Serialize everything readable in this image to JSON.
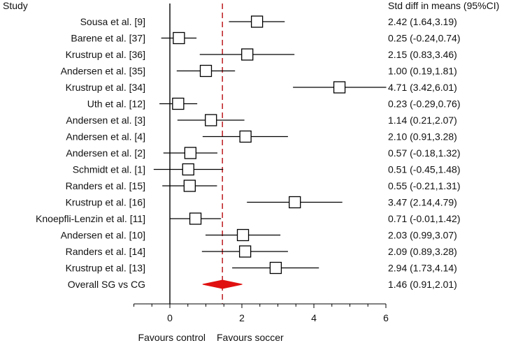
{
  "chart_data": {
    "type": "forest",
    "columns": {
      "study": "Study",
      "effect": "Std diff in means (95%CI)"
    },
    "xlim": [
      -1,
      6
    ],
    "xticks": [
      0,
      2,
      4,
      6
    ],
    "reference_line": 0,
    "pooled_line": 1.46,
    "xlabel_left": "Favours control",
    "xlabel_right": "Favours soccer",
    "studies": [
      {
        "label": "Sousa et al. [9]",
        "est": 2.42,
        "lo": 1.64,
        "hi": 3.19,
        "ci_text": "2.42 (1.64,3.19)"
      },
      {
        "label": "Barene et al. [37]",
        "est": 0.25,
        "lo": -0.24,
        "hi": 0.74,
        "ci_text": "0.25 (-0.24,0.74)"
      },
      {
        "label": "Krustrup et al. [36]",
        "est": 2.15,
        "lo": 0.83,
        "hi": 3.46,
        "ci_text": "2.15 (0.83,3.46)"
      },
      {
        "label": "Andersen et al. [35]",
        "est": 1.0,
        "lo": 0.19,
        "hi": 1.81,
        "ci_text": "1.00 (0.19,1.81)"
      },
      {
        "label": "Krustrup et al. [34]",
        "est": 4.71,
        "lo": 3.42,
        "hi": 6.01,
        "ci_text": "4.71 (3.42,6.01)"
      },
      {
        "label": "Uth et al. [12]",
        "est": 0.23,
        "lo": -0.29,
        "hi": 0.76,
        "ci_text": "0.23 (-0.29,0.76)"
      },
      {
        "label": "Andersen et al. [3]",
        "est": 1.14,
        "lo": 0.21,
        "hi": 2.07,
        "ci_text": "1.14 (0.21,2.07)"
      },
      {
        "label": "Andersen et al. [4]",
        "est": 2.1,
        "lo": 0.91,
        "hi": 3.28,
        "ci_text": "2.10 (0.91,3.28)"
      },
      {
        "label": "Andersen et al. [2]",
        "est": 0.57,
        "lo": -0.18,
        "hi": 1.32,
        "ci_text": "0.57 (-0.18,1.32)"
      },
      {
        "label": "Schmidt et al. [1]",
        "est": 0.51,
        "lo": -0.45,
        "hi": 1.48,
        "ci_text": "0.51 (-0.45,1.48)"
      },
      {
        "label": "Randers et al. [15]",
        "est": 0.55,
        "lo": -0.21,
        "hi": 1.31,
        "ci_text": "0.55 (-0.21,1.31)"
      },
      {
        "label": "Krustrup et al. [16]",
        "est": 3.47,
        "lo": 2.14,
        "hi": 4.79,
        "ci_text": "3.47 (2.14,4.79)"
      },
      {
        "label": "Knoepfli-Lenzin et al. [11]",
        "est": 0.71,
        "lo": -0.01,
        "hi": 1.42,
        "ci_text": "0.71 (-0.01,1.42)"
      },
      {
        "label": "Andersen et al. [10]",
        "est": 2.03,
        "lo": 0.99,
        "hi": 3.07,
        "ci_text": "2.03 (0.99,3.07)"
      },
      {
        "label": "Randers et al. [14]",
        "est": 2.09,
        "lo": 0.89,
        "hi": 3.28,
        "ci_text": "2.09 (0.89,3.28)"
      },
      {
        "label": "Krustrup et al. [13]",
        "est": 2.94,
        "lo": 1.73,
        "hi": 4.14,
        "ci_text": "2.94 (1.73,4.14)"
      }
    ],
    "overall": {
      "label": "Overall SG vs CG",
      "est": 1.46,
      "lo": 0.91,
      "hi": 2.01,
      "ci_text": "1.46 (0.91,2.01)"
    },
    "colors": {
      "diamond": "#e01010",
      "pooled_line": "#c0282d",
      "marks": "#000000"
    }
  }
}
